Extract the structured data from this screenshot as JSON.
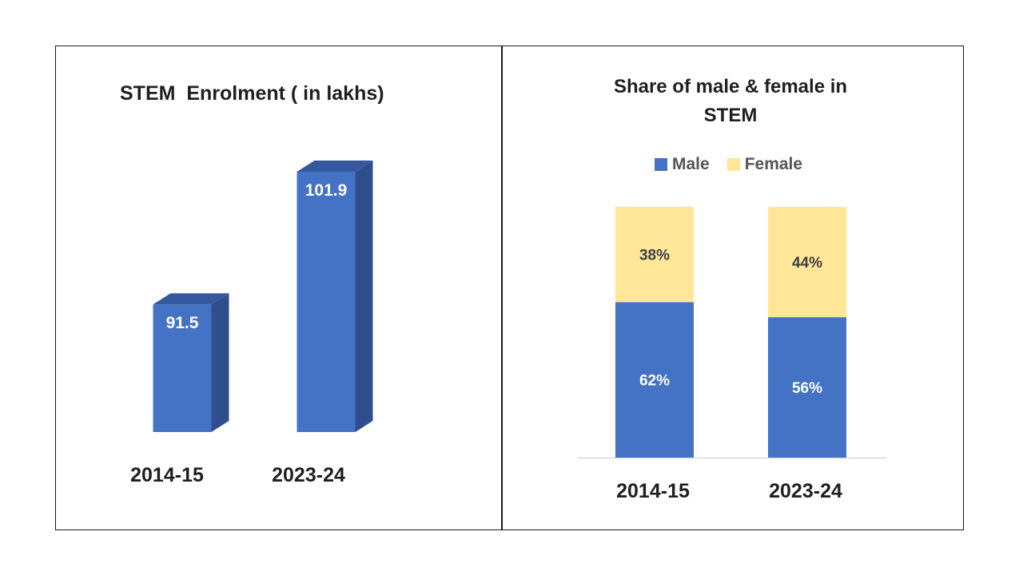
{
  "charts": [
    {
      "title": "STEM  Enrolment ( in lakhs)",
      "chart_data": {
        "type": "bar",
        "title": "STEM  Enrolment ( in lakhs)",
        "categories": [
          "2014-15",
          "2023-24"
        ],
        "values": [
          91.5,
          101.9
        ],
        "data_labels": [
          "91.5",
          "101.9"
        ],
        "color": "#4472C4",
        "style": "3d-column",
        "grid": false
      }
    },
    {
      "title": "Share of male & female in STEM",
      "chart_data": {
        "type": "bar",
        "stacked": true,
        "percent": true,
        "title": "Share of male & female in STEM",
        "categories": [
          "2014-15",
          "2023-24"
        ],
        "series": [
          {
            "name": "Male",
            "values": [
              62,
              56
            ],
            "labels": [
              "62%",
              "56%"
            ],
            "color": "#4472C4"
          },
          {
            "name": "Female",
            "values": [
              38,
              44
            ],
            "labels": [
              "38%",
              "44%"
            ],
            "color": "#FFE699"
          }
        ],
        "legend_position": "top",
        "ylim": [
          0,
          100
        ],
        "grid": false
      }
    }
  ]
}
